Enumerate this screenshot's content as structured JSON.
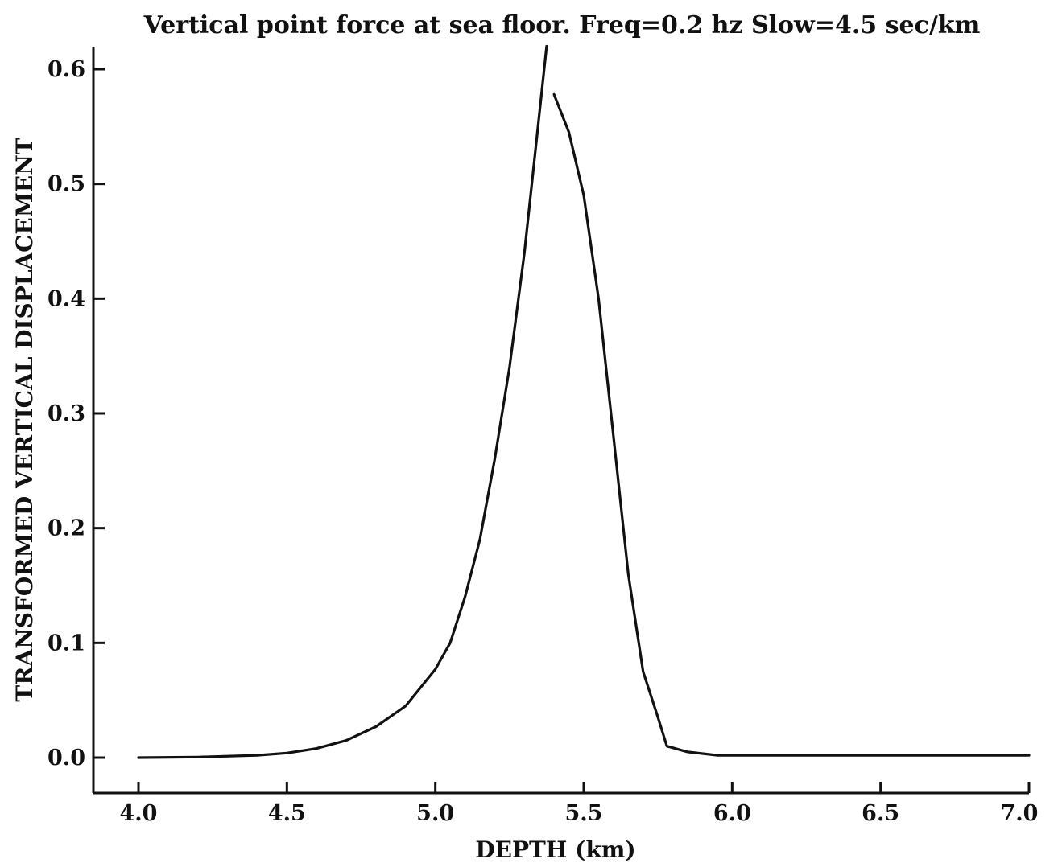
{
  "chart_data": {
    "type": "line",
    "title": "Vertical point force at sea floor.  Freq=0.2 hz  Slow=4.5 sec/km",
    "xlabel": "DEPTH (km)",
    "ylabel": "TRANSFORMED VERTICAL DISPLACEMENT",
    "xlim": [
      3.85,
      7.0
    ],
    "ylim": [
      -0.03,
      0.62
    ],
    "x_ticks": [
      4.0,
      4.5,
      5.0,
      5.5,
      6.0,
      6.5,
      7.0
    ],
    "x_tick_labels": [
      "4.0",
      "4.5",
      "5.0",
      "5.5",
      "6.0",
      "6.5",
      "7.0"
    ],
    "y_ticks": [
      0.0,
      0.1,
      0.2,
      0.3,
      0.4,
      0.5,
      0.6
    ],
    "y_tick_labels": [
      "0.0",
      "0.1",
      "0.2",
      "0.3",
      "0.4",
      "0.5",
      "0.6"
    ],
    "grid": false,
    "legend": "none",
    "series": [
      {
        "segments": [
          [
            [
              4.0,
              0.0
            ],
            [
              4.2,
              0.0005
            ],
            [
              4.4,
              0.002
            ],
            [
              4.5,
              0.004
            ],
            [
              4.6,
              0.008
            ],
            [
              4.7,
              0.015
            ],
            [
              4.8,
              0.027
            ],
            [
              4.9,
              0.045
            ],
            [
              5.0,
              0.077
            ],
            [
              5.05,
              0.1
            ],
            [
              5.1,
              0.14
            ],
            [
              5.15,
              0.19
            ],
            [
              5.2,
              0.26
            ],
            [
              5.25,
              0.34
            ],
            [
              5.3,
              0.44
            ],
            [
              5.35,
              0.56
            ],
            [
              5.375,
              0.62
            ]
          ],
          [
            [
              5.4,
              0.578
            ],
            [
              5.45,
              0.545
            ],
            [
              5.5,
              0.49
            ],
            [
              5.55,
              0.4
            ],
            [
              5.6,
              0.28
            ],
            [
              5.65,
              0.16
            ],
            [
              5.7,
              0.075
            ],
            [
              5.75,
              0.035
            ],
            [
              5.78,
              0.01
            ],
            [
              5.85,
              0.005
            ],
            [
              5.95,
              0.002
            ],
            [
              6.2,
              0.002
            ],
            [
              6.6,
              0.002
            ],
            [
              7.0,
              0.002
            ]
          ]
        ]
      }
    ]
  }
}
